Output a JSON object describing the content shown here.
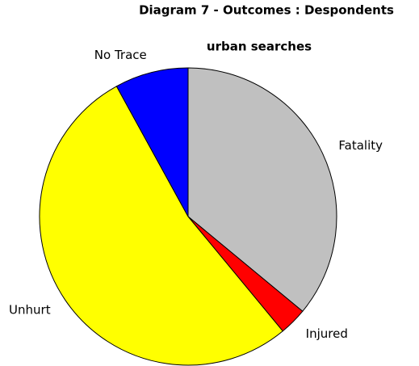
{
  "chart_data": {
    "type": "pie",
    "title": "Diagram 7 - Outcomes : Despondents",
    "subtitle": "urban searches",
    "categories": [
      "Fatality",
      "Injured",
      "Unhurt",
      "No Trace"
    ],
    "values": [
      36,
      3,
      53,
      8
    ],
    "colors": [
      "#c0c0c0",
      "#ff0000",
      "#ffff00",
      "#0000ff"
    ]
  }
}
